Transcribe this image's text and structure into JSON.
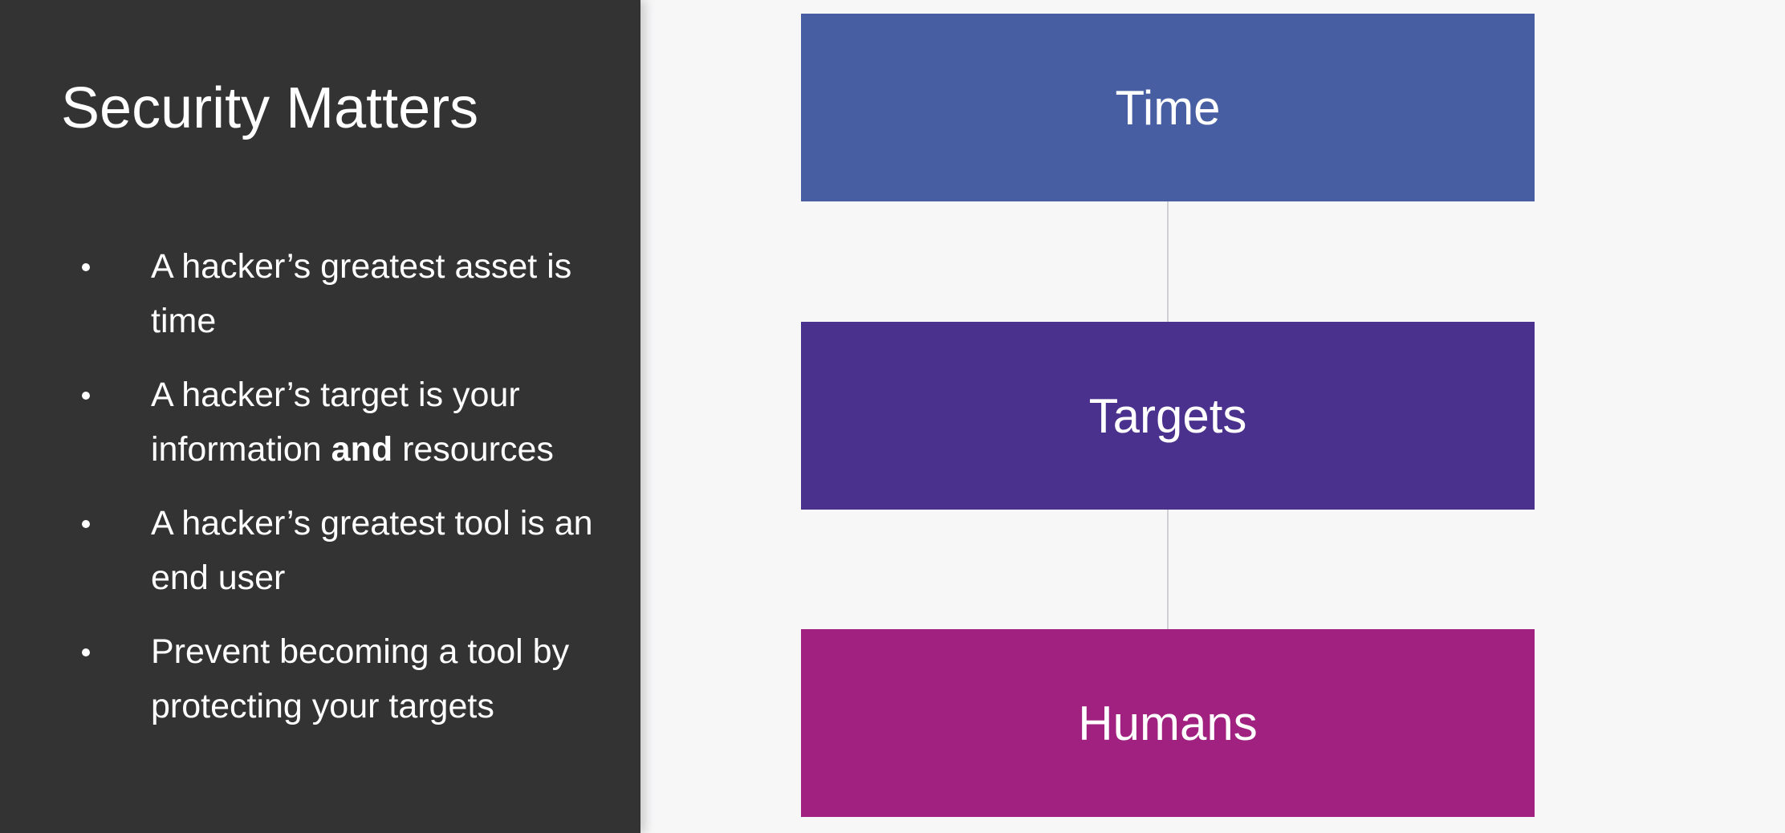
{
  "slide": {
    "title": "Security Matters",
    "bullets": [
      {
        "text": "A hacker’s greatest asset is  time"
      },
      {
        "pre": "A hacker’s target is your information ",
        "bold": "and",
        "post": " resources"
      },
      {
        "text": "A hacker’s greatest tool is an end user"
      },
      {
        "text": "Prevent becoming a tool by protecting your targets"
      }
    ]
  },
  "diagram": {
    "boxes": [
      {
        "label": "Time",
        "color": "#475ea3"
      },
      {
        "label": "Targets",
        "color": "#4a318d"
      },
      {
        "label": "Humans",
        "color": "#a0217f"
      }
    ]
  },
  "colors": {
    "left_panel": "#333333",
    "background": "#f7f7f8",
    "text": "#ffffff"
  }
}
